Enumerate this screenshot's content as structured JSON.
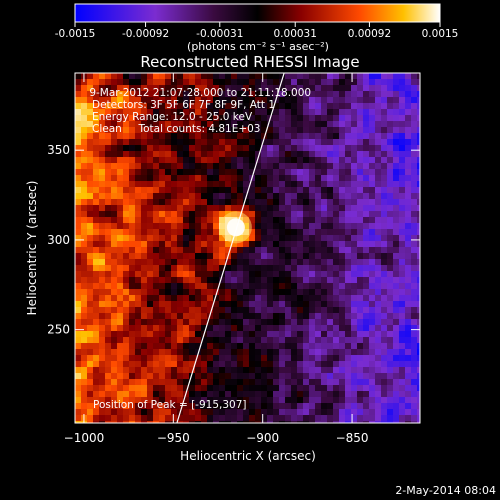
{
  "colorbar": {
    "ticks": [
      "-0.0015",
      "-0.00092",
      "-0.00031",
      "0.00031",
      "0.00092",
      "0.0015"
    ],
    "tick_values": [
      -0.0015,
      -0.00092,
      -0.00031,
      0.00031,
      0.00092,
      0.0015
    ],
    "range": [
      -0.0015,
      0.0015
    ],
    "unit_label": "(photons cm⁻² s⁻¹ asec⁻²)"
  },
  "chart_data": {
    "type": "heatmap",
    "title": "Reconstructed RHESSI Image",
    "xlabel": "Heliocentric X (arcsec)",
    "ylabel": "Heliocentric Y (arcsec)",
    "xlim": [
      -1005,
      -812
    ],
    "ylim": [
      198,
      393
    ],
    "x_ticks": [
      -1000,
      -950,
      -900,
      -850
    ],
    "y_ticks": [
      250,
      300,
      350
    ],
    "peak": [
      -915,
      307
    ],
    "limb_line": [
      [
        -948,
        198
      ],
      [
        -888,
        393
      ]
    ],
    "colormap": [
      "#0000ff",
      "#8a2be2",
      "#000000",
      "#8b0000",
      "#ff4500",
      "#ffd700",
      "#ffffff"
    ]
  },
  "info": {
    "lines": [
      " 9-Mar-2012 21:07:28.000 to 21:11:18.000",
      "Detectors: 3F 5F 6F 7F 8F 9F, Att 1",
      "Energy Range: 12.0 - 25.0 keV",
      "Clean     Total counts: 4.81E+03"
    ],
    "peak_label": "Position of Peak = [-915,307]"
  },
  "footer": {
    "date": "2-May-2014 08:04"
  }
}
